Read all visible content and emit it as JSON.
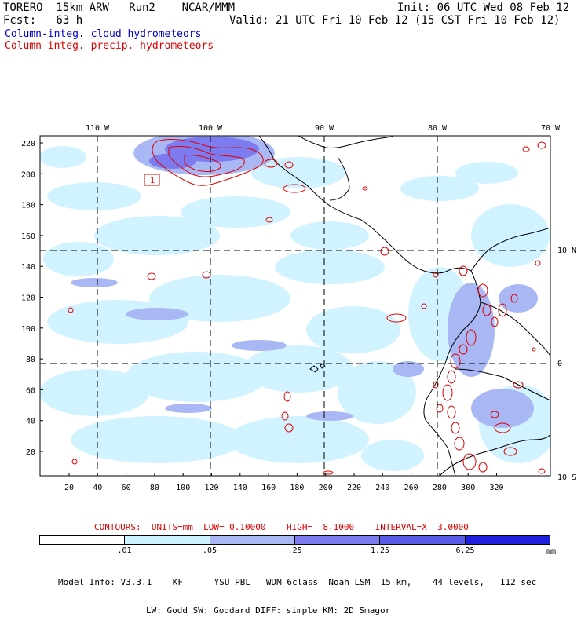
{
  "header": {
    "model": "TORERO  15km ARW   Run2    NCAR/MMM",
    "init": "Init: 06 UTC Wed 08 Feb 12",
    "fcst": "Fcst:   63 h",
    "valid": "Valid: 21 UTC Fri 10 Feb 12 (15 CST Fri 10 Feb 12)"
  },
  "legend": {
    "cloud": "Column-integ. cloud hydrometeors",
    "precip": "Column-integ. precip. hydrometeors",
    "cloud_color": "#0000cc",
    "precip_color": "#e00000"
  },
  "map": {
    "top_labels": [
      "110 W",
      "100 W",
      "90 W",
      "80 W",
      "70 W"
    ],
    "right_labels": [
      "10 N",
      "0",
      "10 S"
    ],
    "y_ticks": [
      "220",
      "200",
      "180",
      "160",
      "140",
      "120",
      "100",
      "80",
      "60",
      "40",
      "20"
    ],
    "x_ticks": [
      "20",
      "40",
      "60",
      "80",
      "100",
      "120",
      "140",
      "160",
      "180",
      "200",
      "220",
      "240",
      "260",
      "280",
      "300",
      "320"
    ],
    "box_label": "1"
  },
  "contours": "CONTOURS:  UNITS=mm  LOW= 0.10000    HIGH=  8.1000    INTERVAL=X  3.0000",
  "colorbar": {
    "labels": [
      ".01",
      ".05",
      ".25",
      "1.25",
      "6.25"
    ],
    "units": "mm",
    "colors": [
      "#ffffff",
      "#ccf2ff",
      "#a9b7f5",
      "#7c7cf0",
      "#5a5ae8",
      "#1f1fe0"
    ]
  },
  "model_info": {
    "line1": "Model Info: V3.3.1    KF      YSU PBL   WDM 6class  Noah LSM  15 km,    44 levels,   112 sec",
    "line2": "LW: Godd SW: Goddard DIFF: simple KM: 2D Smagor"
  }
}
